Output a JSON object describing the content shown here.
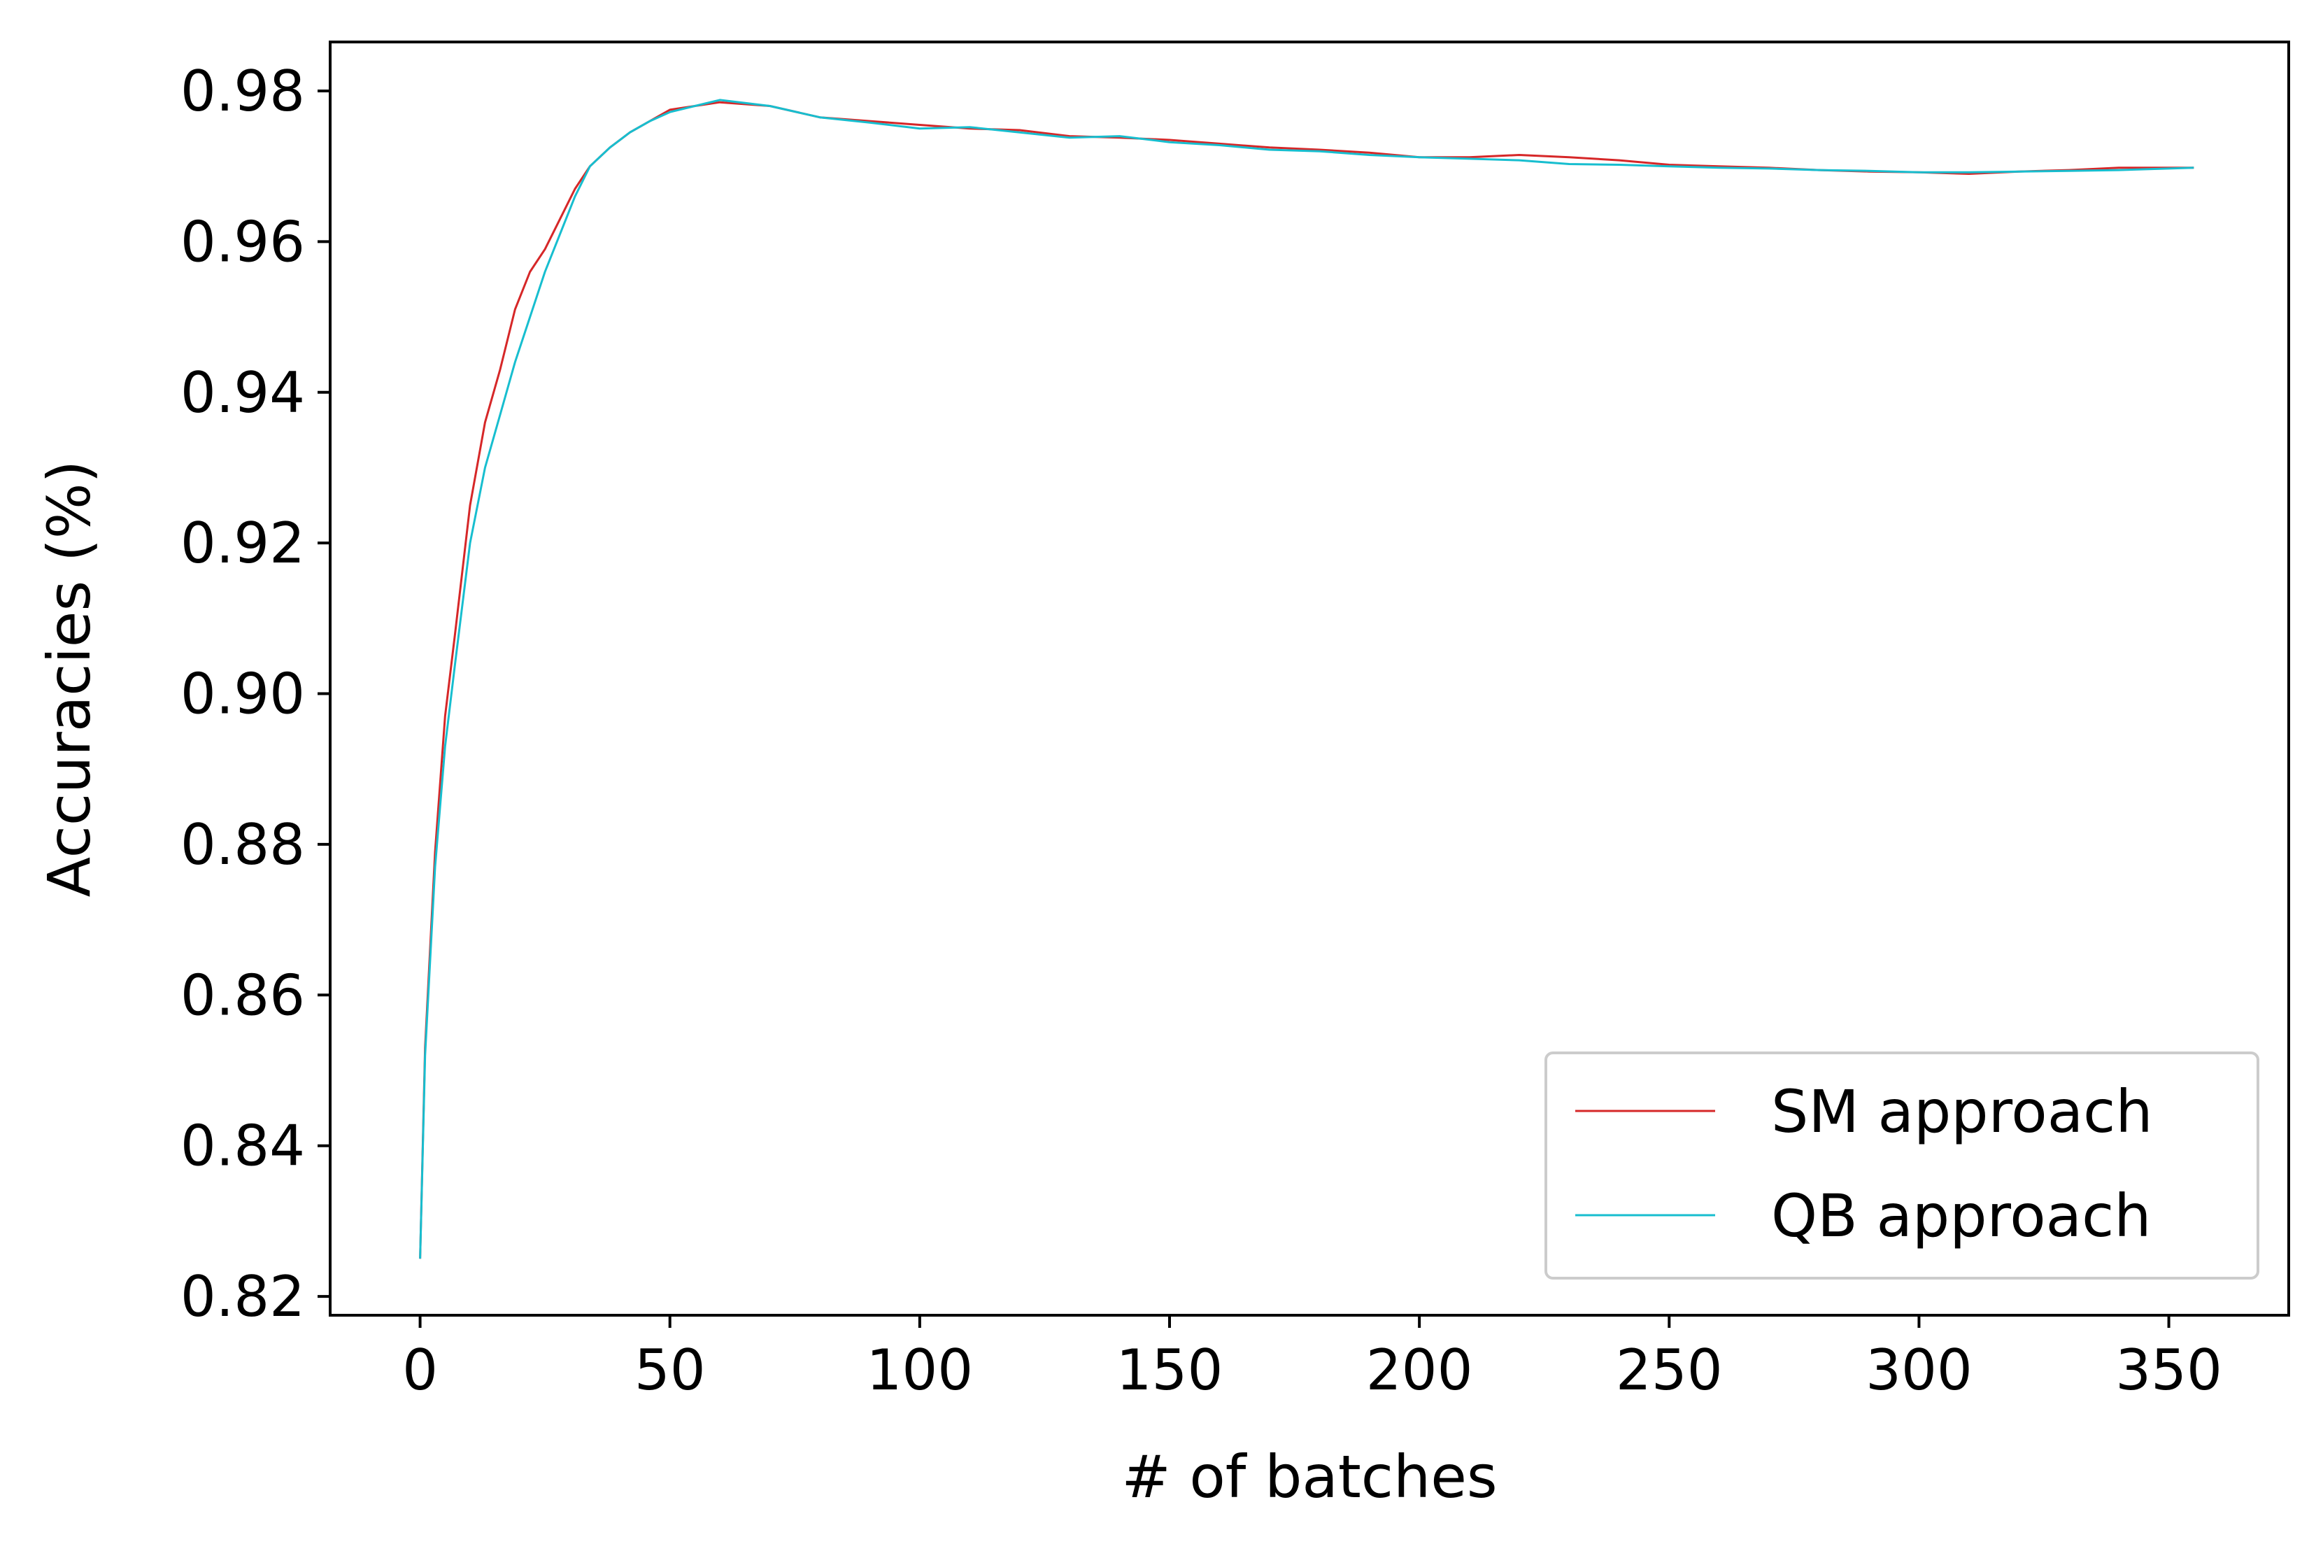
{
  "chart_data": {
    "type": "line",
    "title": "",
    "xlabel": "# of batches",
    "ylabel": "Accuracies (%)",
    "xlim": [
      -18,
      374
    ],
    "ylim": [
      0.8175,
      0.9865
    ],
    "xticks": [
      0,
      50,
      100,
      150,
      200,
      250,
      300,
      350
    ],
    "yticks": [
      0.82,
      0.84,
      0.86,
      0.88,
      0.9,
      0.92,
      0.94,
      0.96,
      0.98
    ],
    "ytick_labels": [
      "0.82",
      "0.84",
      "0.86",
      "0.88",
      "0.90",
      "0.92",
      "0.94",
      "0.96",
      "0.98"
    ],
    "grid": false,
    "legend_position": "lower-right",
    "series": [
      {
        "name": "SM approach",
        "color": "#d62728",
        "x": [
          0,
          1,
          3,
          5,
          7,
          10,
          13,
          16,
          19,
          22,
          25,
          28,
          31,
          34,
          38,
          42,
          46,
          50,
          55,
          60,
          70,
          80,
          90,
          100,
          110,
          120,
          130,
          140,
          150,
          160,
          170,
          180,
          190,
          200,
          210,
          220,
          230,
          240,
          250,
          260,
          270,
          280,
          290,
          300,
          310,
          320,
          330,
          340,
          350,
          355
        ],
        "y": [
          0.825,
          0.853,
          0.879,
          0.897,
          0.908,
          0.925,
          0.936,
          0.943,
          0.951,
          0.956,
          0.959,
          0.963,
          0.967,
          0.97,
          0.9725,
          0.9745,
          0.976,
          0.9775,
          0.978,
          0.9785,
          0.978,
          0.9765,
          0.976,
          0.9755,
          0.975,
          0.9748,
          0.974,
          0.9738,
          0.9735,
          0.973,
          0.9725,
          0.9722,
          0.9718,
          0.9712,
          0.9712,
          0.9715,
          0.9712,
          0.9708,
          0.9702,
          0.97,
          0.9698,
          0.9695,
          0.9693,
          0.9692,
          0.969,
          0.9693,
          0.9695,
          0.9698,
          0.9698,
          0.9698
        ]
      },
      {
        "name": "QB approach",
        "color": "#17becf",
        "x": [
          0,
          1,
          3,
          5,
          7,
          10,
          13,
          16,
          19,
          22,
          25,
          28,
          31,
          34,
          38,
          42,
          46,
          50,
          55,
          60,
          70,
          80,
          90,
          100,
          110,
          120,
          130,
          140,
          150,
          160,
          170,
          180,
          190,
          200,
          210,
          220,
          230,
          240,
          250,
          260,
          270,
          280,
          290,
          300,
          310,
          320,
          330,
          340,
          350,
          355
        ],
        "y": [
          0.825,
          0.852,
          0.877,
          0.893,
          0.904,
          0.92,
          0.93,
          0.937,
          0.944,
          0.95,
          0.956,
          0.961,
          0.966,
          0.97,
          0.9725,
          0.9745,
          0.976,
          0.9772,
          0.978,
          0.9788,
          0.978,
          0.9765,
          0.9758,
          0.975,
          0.9752,
          0.9745,
          0.9738,
          0.974,
          0.9732,
          0.9728,
          0.9722,
          0.972,
          0.9715,
          0.9712,
          0.971,
          0.9708,
          0.9703,
          0.9702,
          0.97,
          0.9698,
          0.9697,
          0.9695,
          0.9694,
          0.9692,
          0.9692,
          0.9693,
          0.9694,
          0.9695,
          0.9697,
          0.9698
        ]
      }
    ]
  }
}
